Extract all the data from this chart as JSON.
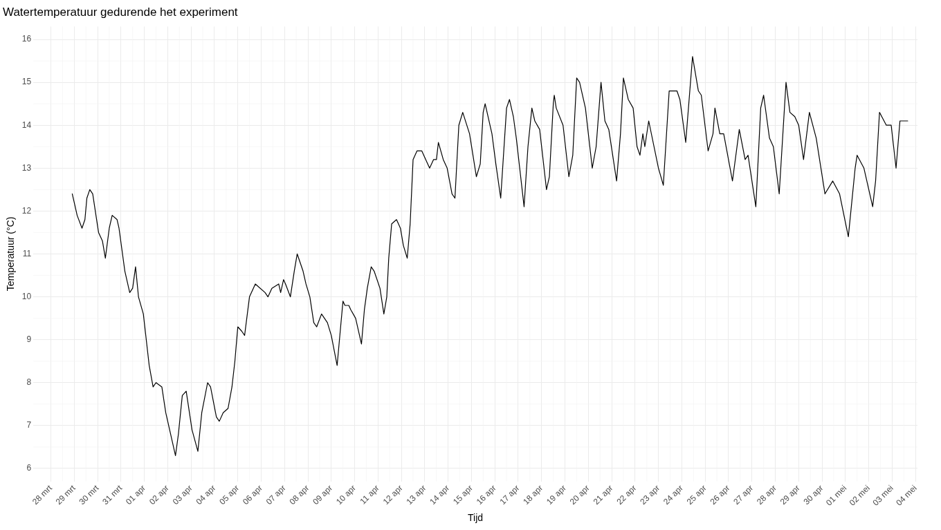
{
  "chart_data": {
    "type": "line",
    "title": "Watertemperatuur gedurende het experiment",
    "xlabel": "Tijd",
    "ylabel": "Temperatuur (°C)",
    "x": [
      "--03-28T22:00",
      "--03-29T00:00",
      "--03-29T03:00",
      "--03-29T08:00",
      "--03-29T11:00",
      "--03-29T13:00",
      "--03-29T16:00",
      "--03-29T19:00",
      "--03-30T01:00",
      "--03-30T05:00",
      "--03-30T08:00",
      "--03-30T12:00",
      "--03-30T15:00",
      "--03-30T20:00",
      "--03-30T22:00",
      "--03-31T04:00",
      "--03-31T09:00",
      "--03-31T12:00",
      "--03-31T15:00",
      "--03-31T18:00",
      "--03-31T23:00",
      "--04-01T05:00",
      "--04-01T09:00",
      "--04-01T12:00",
      "--04-01T18:00",
      "--04-01T22:00",
      "--04-02T08:00",
      "--04-02T11:00",
      "--04-02T15:00",
      "--04-02T19:00",
      "--04-03T01:00",
      "--04-03T07:00",
      "--04-03T11:00",
      "--04-03T17:00",
      "--04-03T20:00",
      "--04-04T02:00",
      "--04-04T05:00",
      "--04-04T09:00",
      "--04-04T14:00",
      "--04-04T18:00",
      "--04-04T21:00",
      "--04-05T00:00",
      "--04-05T04:00",
      "--04-05T07:00",
      "--04-05T12:00",
      "--04-05T18:00",
      "--04-06T04:00",
      "--04-06T07:00",
      "--04-06T11:00",
      "--04-06T18:00",
      "--04-06T20:00",
      "--04-06T23:00",
      "--04-07T01:00",
      "--04-07T06:00",
      "--04-07T10:00",
      "--04-07T13:00",
      "--04-07T19:00",
      "--04-07T22:00",
      "--04-08T02:00",
      "--04-08T06:00",
      "--04-08T09:00",
      "--04-08T14:00",
      "--04-08T20:00",
      "--04-09T00:00",
      "--04-09T06:00",
      "--04-09T12:00",
      "--04-09T14:00",
      "--04-09T18:00",
      "--04-09T20:00",
      "--04-10T01:00",
      "--04-10T07:00",
      "--04-10T10:00",
      "--04-10T13:00",
      "--04-10T17:00",
      "--04-10T20:00",
      "--04-11T02:00",
      "--04-11T06:00",
      "--04-11T09:00",
      "--04-11T11:00",
      "--04-11T14:00",
      "--04-11T19:00",
      "--04-11T23:00",
      "--04-12T02:00",
      "--04-12T06:00",
      "--04-12T09:00",
      "--04-12T12:00",
      "--04-12T16:00",
      "--04-12T21:00",
      "--04-13T01:00",
      "--04-13T05:00",
      "--04-13T09:00",
      "--04-13T12:00",
      "--04-13T14:00",
      "--04-13T19:00",
      "--04-13T23:00",
      "--04-14T04:00",
      "--04-14T07:00",
      "--04-14T11:00",
      "--04-14T15:00",
      "--04-14T22:00",
      "--04-15T05:00",
      "--04-15T09:00",
      "--04-15T12:00",
      "--04-15T14:00",
      "--04-15T21:00",
      "--04-16T01:00",
      "--04-16T06:00",
      "--04-16T12:00",
      "--04-16T15:00",
      "--04-16T19:00",
      "--04-16T22:00",
      "--04-17T06:00",
      "--04-17T10:00",
      "--04-17T14:00",
      "--04-17T17:00",
      "--04-17T22:00",
      "--04-18T05:00",
      "--04-18T08:00",
      "--04-18T12:00",
      "--04-18T13:00",
      "--04-18T15:00",
      "--04-18T22:00",
      "--04-19T04:00",
      "--04-19T08:00",
      "--04-19T12:00",
      "--04-19T15:00",
      "--04-19T21:00",
      "--04-20T04:00",
      "--04-20T08:00",
      "--04-20T13:00",
      "--04-20T17:00",
      "--04-20T21:00",
      "--04-21T05:00",
      "--04-21T09:00",
      "--04-21T12:00",
      "--04-21T17:00",
      "--04-21T22:00",
      "--04-22T02:00",
      "--04-22T05:00",
      "--04-22T08:00",
      "--04-22T10:00",
      "--04-22T14:00",
      "--04-23T00:00",
      "--04-23T05:00",
      "--04-23T11:00",
      "--04-23T19:00",
      "--04-23T22:00",
      "--04-24T04:00",
      "--04-24T11:00",
      "--04-24T17:00",
      "--04-24T20:00",
      "--04-25T03:00",
      "--04-25T08:00",
      "--04-25T10:00",
      "--04-25T15:00",
      "--04-25T19:00",
      "--04-26T04:00",
      "--04-26T11:00",
      "--04-26T17:00",
      "--04-26T20:00",
      "--04-27T04:00",
      "--04-27T09:00",
      "--04-27T12:00",
      "--04-27T18:00",
      "--04-27T22:00",
      "--04-28T04:00",
      "--04-28T11:00",
      "--04-28T15:00",
      "--04-28T20:00",
      "--04-29T00:00",
      "--04-29T05:00",
      "--04-29T11:00",
      "--04-29T18:00",
      "--04-30T03:00",
      "--04-30T11:00",
      "--04-30T18:00",
      "--05-01T03:00",
      "--05-01T10:00",
      "--05-01T12:00",
      "--05-01T19:00",
      "--05-02T04:00",
      "--05-02T07:00",
      "--05-02T11:00",
      "--05-02T18:00",
      "--05-02T23:00",
      "--05-03T04:00",
      "--05-03T08:00",
      "--05-03T11:00",
      "--05-03T16:00"
    ],
    "series": [
      {
        "color": "#000000",
        "values": [
          12.4,
          12.2,
          11.9,
          11.6,
          11.8,
          12.3,
          12.5,
          12.4,
          11.5,
          11.3,
          10.9,
          11.6,
          11.9,
          11.8,
          11.6,
          10.6,
          10.1,
          10.2,
          10.7,
          10.0,
          9.6,
          8.4,
          7.9,
          8.0,
          7.9,
          7.3,
          6.3,
          6.8,
          7.7,
          7.8,
          6.9,
          6.4,
          7.3,
          8.0,
          7.9,
          7.2,
          7.1,
          7.3,
          7.4,
          7.9,
          8.5,
          9.3,
          9.2,
          9.1,
          10.0,
          10.3,
          10.1,
          10.0,
          10.2,
          10.3,
          10.1,
          10.4,
          10.3,
          10.0,
          10.6,
          11.0,
          10.6,
          10.3,
          10.0,
          9.4,
          9.3,
          9.6,
          9.4,
          9.1,
          8.4,
          9.9,
          9.8,
          9.8,
          9.7,
          9.5,
          8.9,
          9.7,
          10.2,
          10.7,
          10.6,
          10.2,
          9.6,
          10.0,
          10.9,
          11.7,
          11.8,
          11.6,
          11.2,
          10.9,
          11.7,
          13.2,
          13.4,
          13.4,
          13.2,
          13.0,
          13.2,
          13.2,
          13.6,
          13.2,
          13.0,
          12.4,
          12.3,
          14.0,
          14.3,
          13.8,
          12.8,
          13.1,
          14.3,
          14.5,
          13.8,
          13.1,
          12.3,
          14.4,
          14.6,
          14.2,
          13.7,
          12.1,
          13.5,
          14.4,
          14.1,
          13.9,
          12.5,
          12.8,
          14.5,
          14.7,
          14.4,
          14.0,
          12.8,
          13.3,
          15.1,
          15.0,
          14.4,
          13.0,
          13.5,
          15.0,
          14.1,
          13.9,
          12.7,
          13.8,
          15.1,
          14.6,
          14.4,
          13.5,
          13.3,
          13.8,
          13.5,
          14.1,
          13.0,
          12.6,
          14.8,
          14.8,
          14.6,
          13.6,
          15.6,
          14.8,
          14.7,
          13.4,
          13.8,
          14.4,
          13.8,
          13.8,
          12.7,
          13.9,
          13.2,
          13.3,
          12.1,
          14.4,
          14.7,
          13.7,
          13.5,
          12.4,
          15.0,
          14.3,
          14.2,
          14.0,
          13.2,
          14.3,
          13.7,
          12.4,
          12.7,
          12.4,
          11.4,
          13.0,
          13.3,
          13.0,
          12.1,
          12.7,
          14.3,
          14.0,
          14.0,
          13.0,
          14.1,
          14.1,
          14.1
        ]
      }
    ],
    "xlim": [
      "--03-27T06:00",
      "--05-04T02:00"
    ],
    "xticks": [
      {
        "value": "--03-28",
        "label": "28 mrt"
      },
      {
        "value": "--03-29",
        "label": "29 mrt"
      },
      {
        "value": "--03-30",
        "label": "30 mrt"
      },
      {
        "value": "--03-31",
        "label": "31 mrt"
      },
      {
        "value": "--04-01",
        "label": "01 apr"
      },
      {
        "value": "--04-02",
        "label": "02 apr"
      },
      {
        "value": "--04-03",
        "label": "03 apr"
      },
      {
        "value": "--04-04",
        "label": "04 apr"
      },
      {
        "value": "--04-05",
        "label": "05 apr"
      },
      {
        "value": "--04-06",
        "label": "06 apr"
      },
      {
        "value": "--04-07",
        "label": "07 apr"
      },
      {
        "value": "--04-08",
        "label": "08 apr"
      },
      {
        "value": "--04-09",
        "label": "09 apr"
      },
      {
        "value": "--04-10",
        "label": "10 apr"
      },
      {
        "value": "--04-11",
        "label": "11 apr"
      },
      {
        "value": "--04-12",
        "label": "12 apr"
      },
      {
        "value": "--04-13",
        "label": "13 apr"
      },
      {
        "value": "--04-14",
        "label": "14 apr"
      },
      {
        "value": "--04-15",
        "label": "15 apr"
      },
      {
        "value": "--04-16",
        "label": "16 apr"
      },
      {
        "value": "--04-17",
        "label": "17 apr"
      },
      {
        "value": "--04-18",
        "label": "18 apr"
      },
      {
        "value": "--04-19",
        "label": "19 apr"
      },
      {
        "value": "--04-20",
        "label": "20 apr"
      },
      {
        "value": "--04-21",
        "label": "21 apr"
      },
      {
        "value": "--04-22",
        "label": "22 apr"
      },
      {
        "value": "--04-23",
        "label": "23 apr"
      },
      {
        "value": "--04-24",
        "label": "24 apr"
      },
      {
        "value": "--04-25",
        "label": "25 apr"
      },
      {
        "value": "--04-26",
        "label": "26 apr"
      },
      {
        "value": "--04-27",
        "label": "27 apr"
      },
      {
        "value": "--04-28",
        "label": "28 apr"
      },
      {
        "value": "--04-29",
        "label": "29 apr"
      },
      {
        "value": "--04-30",
        "label": "30 apr"
      },
      {
        "value": "--05-01",
        "label": "01 mei"
      },
      {
        "value": "--05-02",
        "label": "02 mei"
      },
      {
        "value": "--05-03",
        "label": "03 mei"
      },
      {
        "value": "--05-04",
        "label": "04 mei"
      }
    ],
    "ylim": [
      5.7,
      16.3
    ],
    "yticks": [
      6,
      7,
      8,
      9,
      10,
      11,
      12,
      13,
      14,
      15,
      16
    ],
    "grid": true,
    "marker": "none",
    "line_style": "solid"
  }
}
